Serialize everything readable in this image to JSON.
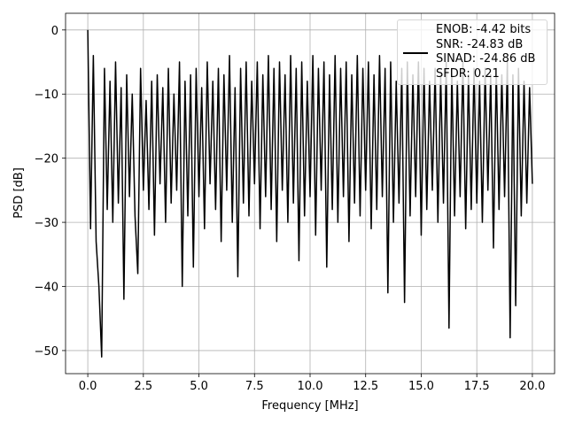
{
  "chart_data": {
    "type": "line",
    "xlabel": "Frequency [MHz]",
    "ylabel": "PSD [dB]",
    "xlim": [
      -1.0,
      21.0
    ],
    "ylim": [
      -53.6,
      2.6
    ],
    "xticks": [
      {
        "value": 0,
        "label": "0.0"
      },
      2.5,
      {
        "value": 5,
        "label": "5.0"
      },
      7.5,
      {
        "value": 10,
        "label": "10.0"
      },
      12.5,
      {
        "value": 15,
        "label": "15.0"
      },
      17.5,
      {
        "value": 20,
        "label": "20.0"
      }
    ],
    "yticks": [
      0,
      {
        "value": -10,
        "label": "−10"
      },
      {
        "value": -20,
        "label": "−20"
      },
      {
        "value": -30,
        "label": "−30"
      },
      {
        "value": -40,
        "label": "−40"
      },
      {
        "value": -50,
        "label": "−50"
      }
    ],
    "grid": true,
    "legend": "upper right",
    "x": [
      0,
      0.125,
      0.25,
      0.375,
      0.5,
      0.625,
      0.75,
      0.875,
      1,
      1.125,
      1.25,
      1.375,
      1.5,
      1.625,
      1.75,
      1.875,
      2,
      2.125,
      2.25,
      2.375,
      2.5,
      2.625,
      2.75,
      2.875,
      3,
      3.125,
      3.25,
      3.375,
      3.5,
      3.625,
      3.75,
      3.875,
      4,
      4.125,
      4.25,
      4.375,
      4.5,
      4.625,
      4.75,
      4.875,
      5,
      5.125,
      5.25,
      5.375,
      5.5,
      5.625,
      5.75,
      5.875,
      6,
      6.125,
      6.25,
      6.375,
      6.5,
      6.625,
      6.75,
      6.875,
      7,
      7.125,
      7.25,
      7.375,
      7.5,
      7.625,
      7.75,
      7.875,
      8,
      8.125,
      8.25,
      8.375,
      8.5,
      8.625,
      8.75,
      8.875,
      9,
      9.125,
      9.25,
      9.375,
      9.5,
      9.625,
      9.75,
      9.875,
      10,
      10.125,
      10.25,
      10.375,
      10.5,
      10.625,
      10.75,
      10.875,
      11,
      11.125,
      11.25,
      11.375,
      11.5,
      11.625,
      11.75,
      11.875,
      12,
      12.125,
      12.25,
      12.375,
      12.5,
      12.625,
      12.75,
      12.875,
      13,
      13.125,
      13.25,
      13.375,
      13.5,
      13.625,
      13.75,
      13.875,
      14,
      14.125,
      14.25,
      14.375,
      14.5,
      14.625,
      14.75,
      14.875,
      15,
      15.125,
      15.25,
      15.375,
      15.5,
      15.625,
      15.75,
      15.875,
      16,
      16.125,
      16.25,
      16.375,
      16.5,
      16.625,
      16.75,
      16.875,
      17,
      17.125,
      17.25,
      17.375,
      17.5,
      17.625,
      17.75,
      17.875,
      18,
      18.125,
      18.25,
      18.375,
      18.5,
      18.625,
      18.75,
      18.875,
      19,
      19.125,
      19.25,
      19.375,
      19.5,
      19.625,
      19.75,
      19.875,
      20
    ],
    "series": [
      {
        "name": "ENOB: -4.42 bits\nSNR: -24.83 dB\nSINAD: -24.86 dB\nSFDR: 0.21",
        "color": "#000000",
        "values": [
          0,
          -31,
          -4,
          -33,
          -40,
          -51,
          -6,
          -28,
          -8,
          -30,
          -5,
          -27,
          -9,
          -42,
          -7,
          -26,
          -10,
          -29,
          -38,
          -6,
          -25,
          -11,
          -28,
          -8,
          -32,
          -7,
          -24,
          -9,
          -30,
          -6,
          -27,
          -10,
          -25,
          -5,
          -40,
          -8,
          -29,
          -7,
          -37,
          -6,
          -26,
          -9,
          -31,
          -5,
          -24,
          -8,
          -28,
          -6,
          -33,
          -7,
          -25,
          -4,
          -30,
          -9,
          -38.5,
          -6,
          -27,
          -5,
          -29,
          -8,
          -24,
          -5,
          -31,
          -7,
          -26,
          -4,
          -28,
          -6,
          -33,
          -5,
          -25,
          -7,
          -30,
          -4,
          -27,
          -6,
          -36,
          -5,
          -29,
          -8,
          -26,
          -4,
          -32,
          -6,
          -25,
          -5,
          -37,
          -7,
          -28,
          -4,
          -30,
          -6,
          -26,
          -5,
          -33,
          -7,
          -27,
          -4,
          -29,
          -6,
          -25,
          -5,
          -31,
          -7,
          -28,
          -4,
          -26,
          -6,
          -41,
          -5,
          -30,
          -8,
          -27,
          -6,
          -42.5,
          -5,
          -29,
          -7,
          -26,
          -5,
          -32,
          -6,
          -28,
          -8,
          -25,
          -6,
          -30,
          -7,
          -27,
          -5,
          -46.5,
          -6,
          -29,
          -8,
          -26,
          -5,
          -31,
          -7,
          -28,
          -6,
          -27,
          -8,
          -30,
          -6,
          -25,
          -7,
          -34,
          -6,
          -28,
          -7,
          -26,
          -5,
          -48,
          -7,
          -43,
          -6,
          -29,
          -8,
          -27,
          -9,
          -24
        ]
      }
    ]
  }
}
